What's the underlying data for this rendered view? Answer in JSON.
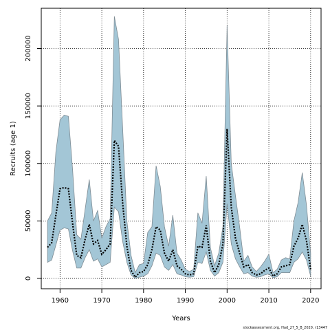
{
  "chart_data": {
    "type": "area",
    "xlabel": "Years",
    "ylabel": "Recruits (age 1)",
    "xlim": [
      1955.5,
      2022.5
    ],
    "ylim": [
      -9000,
      235000
    ],
    "x_ticks": [
      1960,
      1970,
      1980,
      1990,
      2000,
      2010,
      2020
    ],
    "y_ticks": [
      0,
      50000,
      100000,
      150000,
      200000
    ],
    "grid": true,
    "band_color": "#a3c6d6",
    "band_edge_color": "#7f8c94",
    "line_color": "#000000",
    "x": [
      1957,
      1958,
      1959,
      1960,
      1961,
      1962,
      1963,
      1964,
      1965,
      1966,
      1967,
      1968,
      1969,
      1970,
      1971,
      1972,
      1973,
      1974,
      1975,
      1976,
      1977,
      1978,
      1979,
      1980,
      1981,
      1982,
      1983,
      1984,
      1985,
      1986,
      1987,
      1988,
      1989,
      1990,
      1991,
      1992,
      1993,
      1994,
      1995,
      1996,
      1997,
      1998,
      1999,
      2000,
      2001,
      2002,
      2003,
      2004,
      2005,
      2006,
      2007,
      2008,
      2009,
      2010,
      2011,
      2012,
      2013,
      2014,
      2015,
      2016,
      2017,
      2018,
      2019,
      2020
    ],
    "series": [
      {
        "role": "estimate",
        "values": [
          27000,
          31000,
          55000,
          78000,
          79000,
          78000,
          48000,
          20000,
          18000,
          34000,
          47000,
          30000,
          33000,
          21000,
          25000,
          30000,
          120000,
          115000,
          65000,
          28000,
          7000,
          1000,
          5000,
          6000,
          12000,
          25000,
          45000,
          42000,
          22000,
          15000,
          25000,
          11000,
          8000,
          4000,
          3000,
          4000,
          28000,
          27000,
          46000,
          15000,
          5000,
          12000,
          30000,
          130000,
          62000,
          35000,
          22000,
          10000,
          12000,
          5000,
          3000,
          4000,
          7000,
          9000,
          2000,
          4000,
          10000,
          11000,
          12000,
          28000,
          35000,
          47000,
          33000,
          8000
        ]
      },
      {
        "role": "upper",
        "values": [
          50000,
          57000,
          110000,
          138000,
          142000,
          141000,
          95000,
          38000,
          34000,
          60000,
          86000,
          50000,
          59000,
          35000,
          45000,
          52000,
          228000,
          208000,
          130000,
          50000,
          20000,
          5000,
          12000,
          13000,
          40000,
          45000,
          98000,
          80000,
          45000,
          28000,
          55000,
          22000,
          16000,
          8000,
          6000,
          8000,
          57000,
          48000,
          89000,
          27000,
          11000,
          22000,
          45000,
          220000,
          100000,
          72000,
          45000,
          15000,
          20000,
          10000,
          6000,
          10000,
          15000,
          21000,
          5000,
          8000,
          16000,
          18000,
          17000,
          50000,
          66000,
          92000,
          64000,
          22000
        ]
      },
      {
        "role": "lower",
        "values": [
          14000,
          16000,
          29000,
          42000,
          44000,
          43000,
          24000,
          9000,
          9000,
          18000,
          25000,
          15000,
          17000,
          10000,
          12000,
          14000,
          62000,
          58000,
          32000,
          14000,
          3000,
          0,
          1000,
          2000,
          4000,
          11000,
          22000,
          20000,
          10000,
          7000,
          12000,
          4000,
          3000,
          1500,
          1000,
          1500,
          14000,
          13000,
          23000,
          7000,
          2000,
          5000,
          14000,
          65000,
          30000,
          17000,
          10000,
          4000,
          5000,
          2000,
          1000,
          1500,
          3000,
          4000,
          500,
          1500,
          5000,
          5000,
          5000,
          14000,
          17000,
          23000,
          16000,
          2000
        ]
      }
    ]
  },
  "footer_text": "stockassessment.org, Had_27_5_B_2020, r13447"
}
